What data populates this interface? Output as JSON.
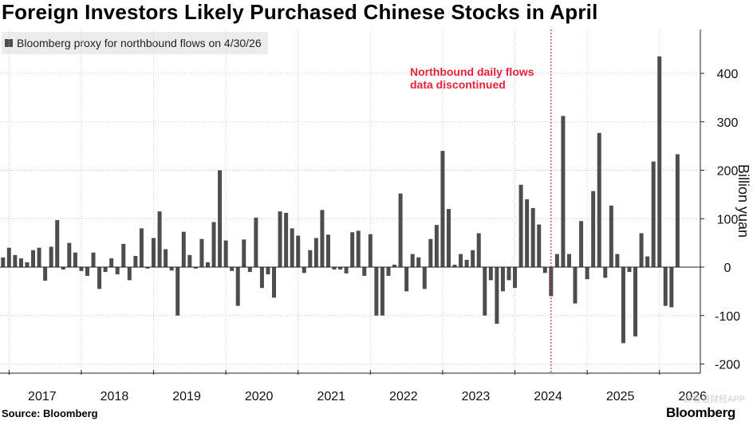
{
  "header": {
    "title": "Foreign Investors Likely Purchased Chinese Stocks in April"
  },
  "legend": {
    "label": "Bloomberg proxy for northbound flows on 4/30/26"
  },
  "footer": {
    "source": "Source: Bloomberg",
    "brand": "Bloomberg",
    "watermark": "@智通财经APP"
  },
  "colors": {
    "bar": "#4d4d4d",
    "annotation": "#e8213c",
    "grid": "#cccccc"
  },
  "chart_data": {
    "type": "bar",
    "series": [
      {
        "name": "Bloomberg proxy for northbound flows on 4/30/26",
        "x": [
          "2016-12",
          "2017-01",
          "2017-02",
          "2017-03",
          "2017-04",
          "2017-05",
          "2017-06",
          "2017-07",
          "2017-08",
          "2017-09",
          "2017-10",
          "2017-11",
          "2017-12",
          "2018-01",
          "2018-02",
          "2018-03",
          "2018-04",
          "2018-05",
          "2018-06",
          "2018-07",
          "2018-08",
          "2018-09",
          "2018-10",
          "2018-11",
          "2018-12",
          "2019-01",
          "2019-02",
          "2019-03",
          "2019-04",
          "2019-05",
          "2019-06",
          "2019-07",
          "2019-08",
          "2019-09",
          "2019-10",
          "2019-11",
          "2019-12",
          "2020-01",
          "2020-02",
          "2020-03",
          "2020-04",
          "2020-05",
          "2020-06",
          "2020-07",
          "2020-08",
          "2020-09",
          "2020-10",
          "2020-11",
          "2020-12",
          "2021-01",
          "2021-02",
          "2021-03",
          "2021-04",
          "2021-05",
          "2021-06",
          "2021-07",
          "2021-08",
          "2021-09",
          "2021-10",
          "2021-11",
          "2021-12",
          "2022-01",
          "2022-02",
          "2022-03",
          "2022-04",
          "2022-05",
          "2022-06",
          "2022-07",
          "2022-08",
          "2022-09",
          "2022-10",
          "2022-11",
          "2022-12",
          "2023-01",
          "2023-02",
          "2023-03",
          "2023-04",
          "2023-05",
          "2023-06",
          "2023-07",
          "2023-08",
          "2023-09",
          "2023-10",
          "2023-11",
          "2023-12",
          "2024-01",
          "2024-02",
          "2024-03",
          "2024-04",
          "2024-05",
          "2024-06",
          "2024-07",
          "2024-08",
          "2024-09",
          "2024-10",
          "2024-11",
          "2024-12",
          "2025-01",
          "2025-02",
          "2025-03",
          "2025-04",
          "2025-05",
          "2025-06",
          "2025-07",
          "2025-08",
          "2025-09",
          "2025-10",
          "2025-11",
          "2025-12",
          "2026-01",
          "2026-02",
          "2026-03",
          "2026-04"
        ],
        "values": [
          20,
          40,
          25,
          18,
          10,
          35,
          40,
          -28,
          42,
          97,
          -5,
          50,
          30,
          -8,
          -18,
          30,
          -45,
          -10,
          18,
          -15,
          48,
          -27,
          23,
          80,
          -3,
          60,
          115,
          37,
          -7,
          -100,
          73,
          25,
          -3,
          58,
          10,
          93,
          200,
          55,
          -8,
          -80,
          57,
          -10,
          102,
          -43,
          -15,
          -63,
          115,
          112,
          80,
          65,
          -12,
          35,
          60,
          118,
          67,
          -5,
          -5,
          -13,
          72,
          75,
          -18,
          68,
          -100,
          -100,
          -18,
          5,
          152,
          -50,
          27,
          20,
          -45,
          58,
          87,
          240,
          120,
          5,
          27,
          15,
          35,
          70,
          -100,
          -27,
          -117,
          -50,
          -27,
          -43,
          170,
          140,
          122,
          88,
          -12,
          -60,
          27,
          312,
          27,
          -75,
          95,
          -25,
          157,
          277,
          -22,
          127,
          27,
          -157,
          -10,
          -143,
          70,
          22,
          218,
          435,
          -80,
          -83,
          233
        ]
      }
    ],
    "ylabel": "Billion yuan",
    "ylim": [
      -200,
      460
    ],
    "yticks": [
      -200,
      -100,
      0,
      100,
      200,
      300,
      400
    ],
    "ytick_labels": [
      "-200",
      "-100",
      "0",
      "100",
      "200",
      "300",
      "400"
    ],
    "xtick_labels": [
      "2017",
      "2018",
      "2019",
      "2020",
      "2021",
      "2022",
      "2023",
      "2024",
      "2025",
      "2026"
    ],
    "grid": "vertical dotted at year boundaries",
    "annotation": {
      "lines": [
        "Northbound daily flows",
        "data discontinued"
      ],
      "x": "2024-08"
    }
  }
}
